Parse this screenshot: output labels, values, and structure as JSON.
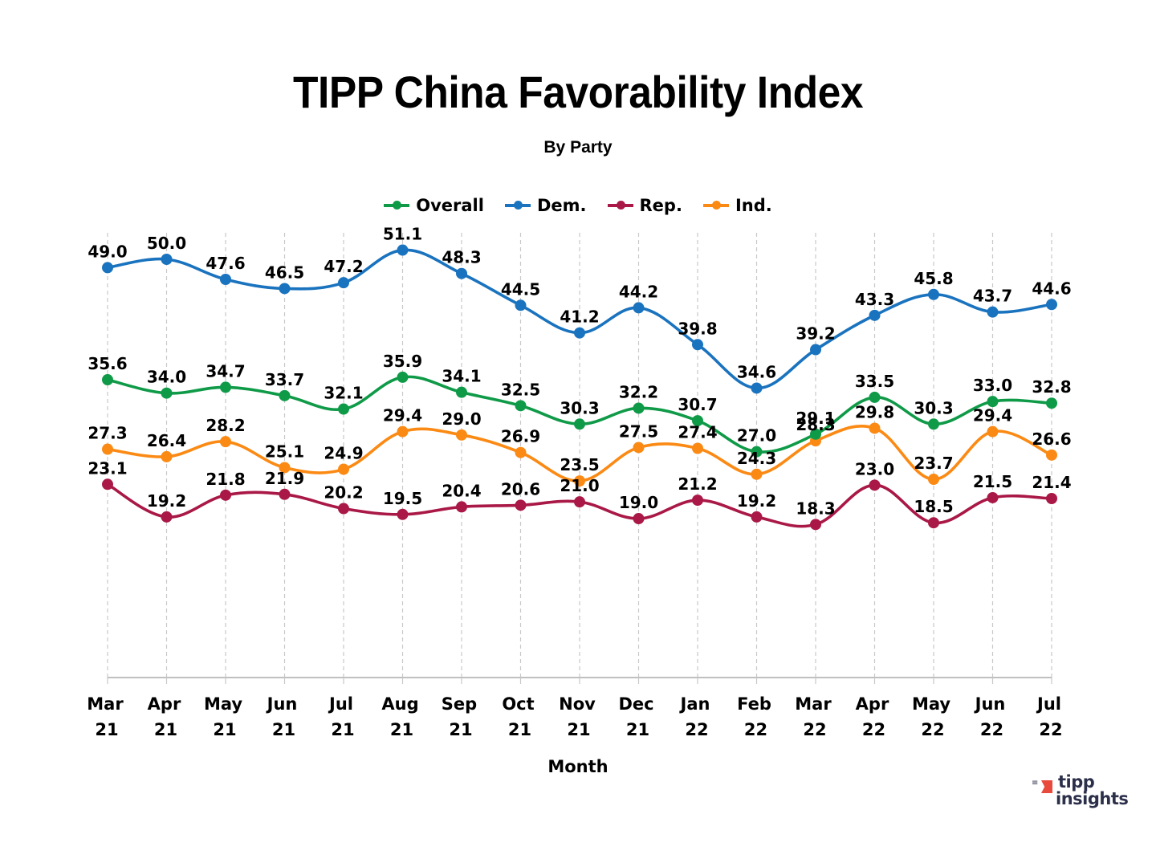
{
  "chart_data": {
    "type": "line",
    "title": "TIPP China Favorability Index",
    "subtitle": "By Party",
    "xlabel": "Month",
    "ylabel": "",
    "ylim": [
      0,
      55
    ],
    "grid": "vertical dashed",
    "legend_position": "top-center",
    "categories": [
      [
        "Mar",
        "21"
      ],
      [
        "Apr",
        "21"
      ],
      [
        "May",
        "21"
      ],
      [
        "Jun",
        "21"
      ],
      [
        "Jul",
        "21"
      ],
      [
        "Aug",
        "21"
      ],
      [
        "Sep",
        "21"
      ],
      [
        "Oct",
        "21"
      ],
      [
        "Nov",
        "21"
      ],
      [
        "Dec",
        "21"
      ],
      [
        "Jan",
        "22"
      ],
      [
        "Feb",
        "22"
      ],
      [
        "Mar",
        "22"
      ],
      [
        "Apr",
        "22"
      ],
      [
        "May",
        "22"
      ],
      [
        "Jun",
        "22"
      ],
      [
        "Jul",
        "22"
      ]
    ],
    "series": [
      {
        "key": "overall",
        "name": "Overall",
        "color": "#0f9a48",
        "values": [
          35.6,
          34.0,
          34.7,
          33.7,
          32.1,
          35.9,
          34.1,
          32.5,
          30.3,
          32.2,
          30.7,
          27.0,
          29.1,
          33.5,
          30.3,
          33.0,
          32.8
        ]
      },
      {
        "key": "dem",
        "name": "Dem.",
        "color": "#1a73be",
        "values": [
          49.0,
          50.0,
          47.6,
          46.5,
          47.2,
          51.1,
          48.3,
          44.5,
          41.2,
          44.2,
          39.8,
          34.6,
          39.2,
          43.3,
          45.8,
          43.7,
          44.6
        ]
      },
      {
        "key": "rep",
        "name": "Rep.",
        "color": "#a91846",
        "values": [
          23.1,
          19.2,
          21.8,
          21.9,
          20.2,
          19.5,
          20.4,
          20.6,
          21.0,
          19.0,
          21.2,
          19.2,
          18.3,
          23.0,
          18.5,
          21.5,
          21.4
        ]
      },
      {
        "key": "ind",
        "name": "Ind.",
        "color": "#fb8a14",
        "values": [
          27.3,
          26.4,
          28.2,
          25.1,
          24.9,
          29.4,
          29.0,
          26.9,
          23.5,
          27.5,
          27.4,
          24.3,
          28.3,
          29.8,
          23.7,
          29.4,
          26.6
        ]
      }
    ]
  },
  "logo": {
    "line1": "tipp",
    "line2": "insights",
    "icon": "tipp-flag-icon",
    "accent": "#e84b3c",
    "text_color": "#2b2f4a"
  }
}
